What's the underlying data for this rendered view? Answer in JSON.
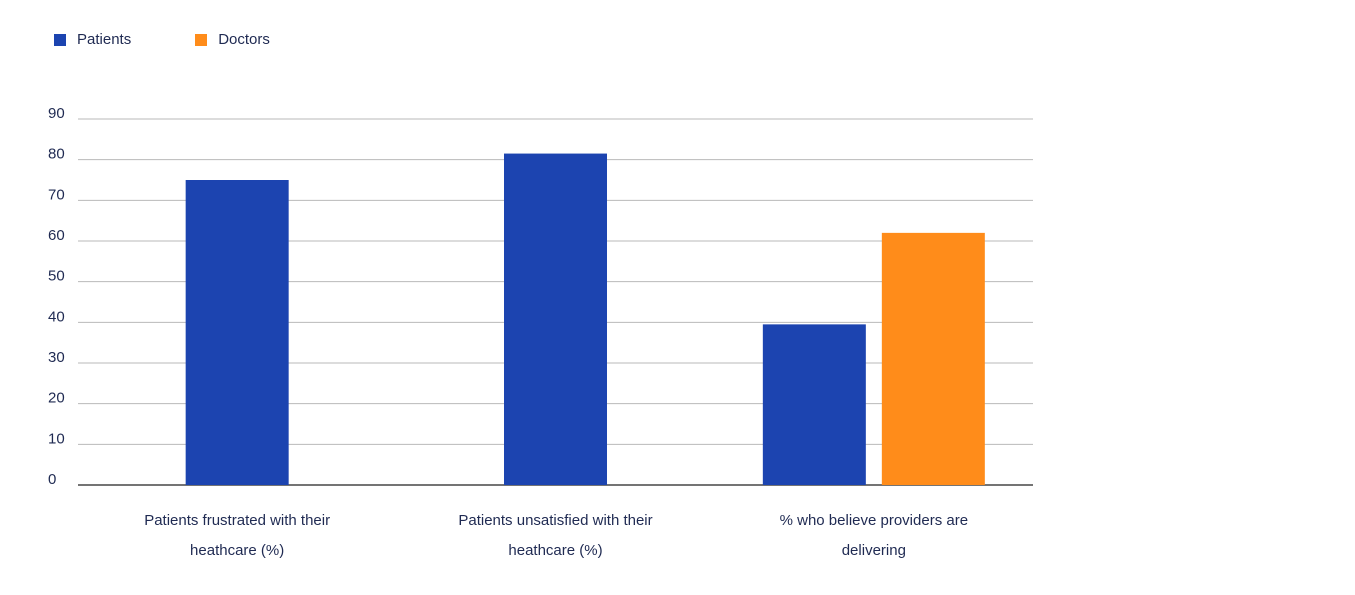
{
  "chart_data": {
    "type": "bar",
    "categories": [
      "Patients frustrated with their heathcare (%)",
      "Patients unsatisfied with their heathcare (%)",
      "% who believe providers are delivering"
    ],
    "series": [
      {
        "name": "Patients",
        "color": "#1c44b0",
        "values": [
          75,
          81.5,
          39.5
        ]
      },
      {
        "name": "Doctors",
        "color": "#ff8c1a",
        "values": [
          null,
          null,
          62
        ]
      }
    ],
    "y_ticks": [
      "0",
      "10",
      "20",
      "30",
      "40",
      "50",
      "60",
      "70",
      "80",
      "90"
    ],
    "ylim": [
      0,
      90
    ],
    "grid": true,
    "legend_position": "top-left",
    "title": "",
    "xlabel": "",
    "ylabel": ""
  }
}
